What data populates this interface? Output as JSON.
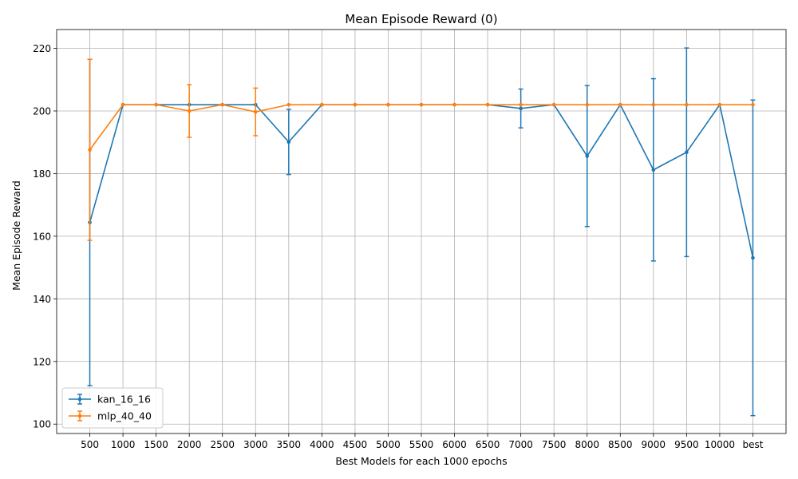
{
  "chart_data": {
    "type": "line",
    "title": "Mean Episode Reward (0)",
    "xlabel": "Best Models for each 1000 epochs",
    "ylabel": "Mean Episode Reward",
    "categories": [
      "500",
      "1000",
      "1500",
      "2000",
      "2500",
      "3000",
      "3500",
      "4000",
      "4500",
      "5000",
      "5500",
      "6000",
      "6500",
      "7000",
      "7500",
      "8000",
      "8500",
      "9000",
      "9500",
      "10000",
      "best"
    ],
    "ylim": [
      97,
      226
    ],
    "yticks": [
      100,
      120,
      140,
      160,
      180,
      200,
      220
    ],
    "grid": true,
    "legend_position": "lower-left",
    "series": [
      {
        "name": "kan_16_16",
        "color": "#1f77b4",
        "values": [
          164.4,
          202,
          202,
          202,
          202,
          202,
          190.1,
          202,
          202,
          202,
          202,
          202,
          202,
          200.8,
          202,
          185.6,
          202,
          181.2,
          186.8,
          202,
          153.1
        ],
        "errors": [
          52.1,
          0,
          0,
          0,
          0,
          0,
          10.4,
          0,
          0,
          0,
          0,
          0,
          0,
          6.2,
          0,
          22.5,
          0,
          29.1,
          33.3,
          0,
          50.4
        ]
      },
      {
        "name": "mlp_40_40",
        "color": "#ff7f0e",
        "values": [
          187.6,
          202,
          202,
          200,
          202,
          199.7,
          202,
          202,
          202,
          202,
          202,
          202,
          202,
          202,
          202,
          202,
          202,
          202,
          202,
          202,
          202
        ],
        "errors": [
          28.9,
          0,
          0,
          8.4,
          0,
          7.6,
          0,
          0,
          0,
          0,
          0,
          0,
          0,
          0,
          0,
          0,
          0,
          0,
          0,
          0,
          0
        ]
      }
    ]
  }
}
